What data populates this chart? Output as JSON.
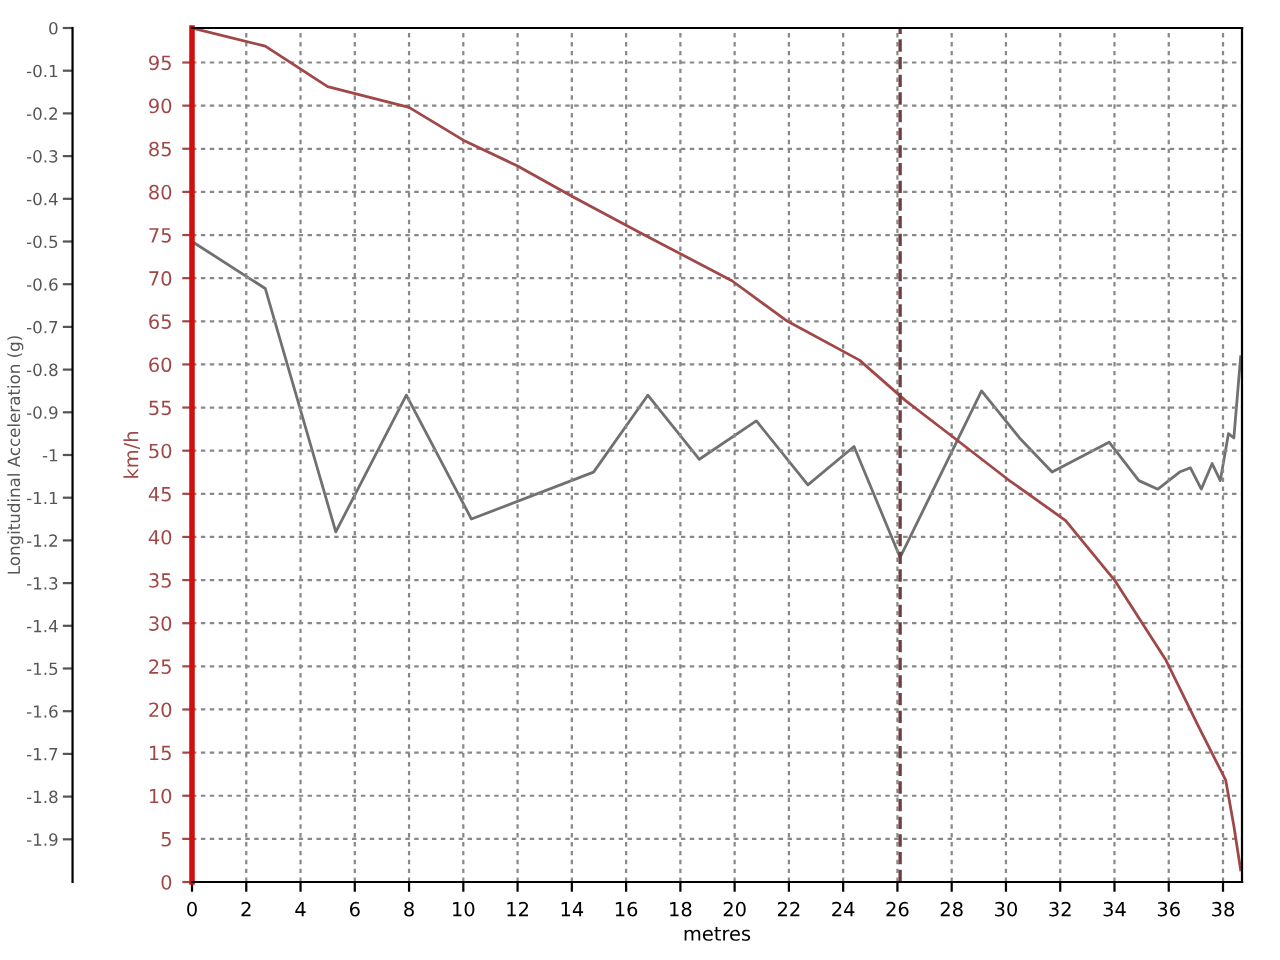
{
  "chart_data": {
    "type": "line",
    "xlabel": "metres",
    "ylabel": "km/h",
    "y2label": "Longitudinal Acceleration (g)",
    "xlim": [
      0,
      38.7
    ],
    "xticks": [
      0,
      2,
      4,
      6,
      8,
      10,
      12,
      14,
      16,
      18,
      20,
      22,
      24,
      26,
      28,
      30,
      32,
      34,
      36,
      38
    ],
    "ylim": [
      0,
      99
    ],
    "yticks": [
      0,
      5,
      10,
      15,
      20,
      25,
      30,
      35,
      40,
      45,
      50,
      55,
      60,
      65,
      70,
      75,
      80,
      85,
      90,
      95
    ],
    "y2lim": [
      -2.0,
      0
    ],
    "y2ticks": [
      0,
      -0.1,
      -0.2,
      -0.3,
      -0.4,
      -0.5,
      -0.6,
      -0.7,
      -0.8,
      -0.9,
      -1,
      -1.1,
      -1.2,
      -1.3,
      -1.4,
      -1.5,
      -1.6,
      -1.7,
      -1.8,
      -1.9
    ],
    "grid": true,
    "line_style": "solid",
    "marker": "none",
    "series": [
      {
        "color": "#a04848",
        "x": [
          0,
          2.7,
          5,
          8,
          10,
          12,
          14,
          16.5,
          19.9,
          21.9,
          24.6,
          26.3,
          28.0,
          30.1,
          32.2,
          34.0,
          35.9,
          37.1,
          38.1,
          38.4,
          38.65
        ],
        "values": [
          99,
          96.9,
          92.2,
          89.8,
          86,
          83,
          79.5,
          75.3,
          69.7,
          65.1,
          60.5,
          55.8,
          51.7,
          46.6,
          41.9,
          35,
          25.7,
          18,
          11.8,
          6.5,
          1.4
        ]
      },
      {
        "color": "#707070",
        "axis": "y2",
        "x": [
          0,
          2.7,
          5.3,
          7.9,
          10.3,
          14.8,
          16.8,
          18.7,
          20.8,
          22.7,
          24.4,
          26.1,
          29.1,
          30.5,
          31.7,
          33.8,
          34.9,
          35.6,
          36.4,
          36.8,
          37.2,
          37.6,
          37.9,
          38.2,
          38.4,
          38.65
        ],
        "values": [
          -0.5,
          -0.61,
          -1.18,
          -0.86,
          -1.15,
          -1.04,
          -0.86,
          -1.01,
          -0.92,
          -1.07,
          -0.98,
          -1.24,
          -0.85,
          -0.96,
          -1.04,
          -0.97,
          -1.06,
          -1.08,
          -1.04,
          -1.03,
          -1.08,
          -1.02,
          -1.06,
          -0.95,
          -0.96,
          -0.77
        ]
      }
    ],
    "ref_lines": [
      {
        "axis": "x",
        "value": 26.1,
        "color": "#704040",
        "line_style": "dashed"
      }
    ]
  }
}
